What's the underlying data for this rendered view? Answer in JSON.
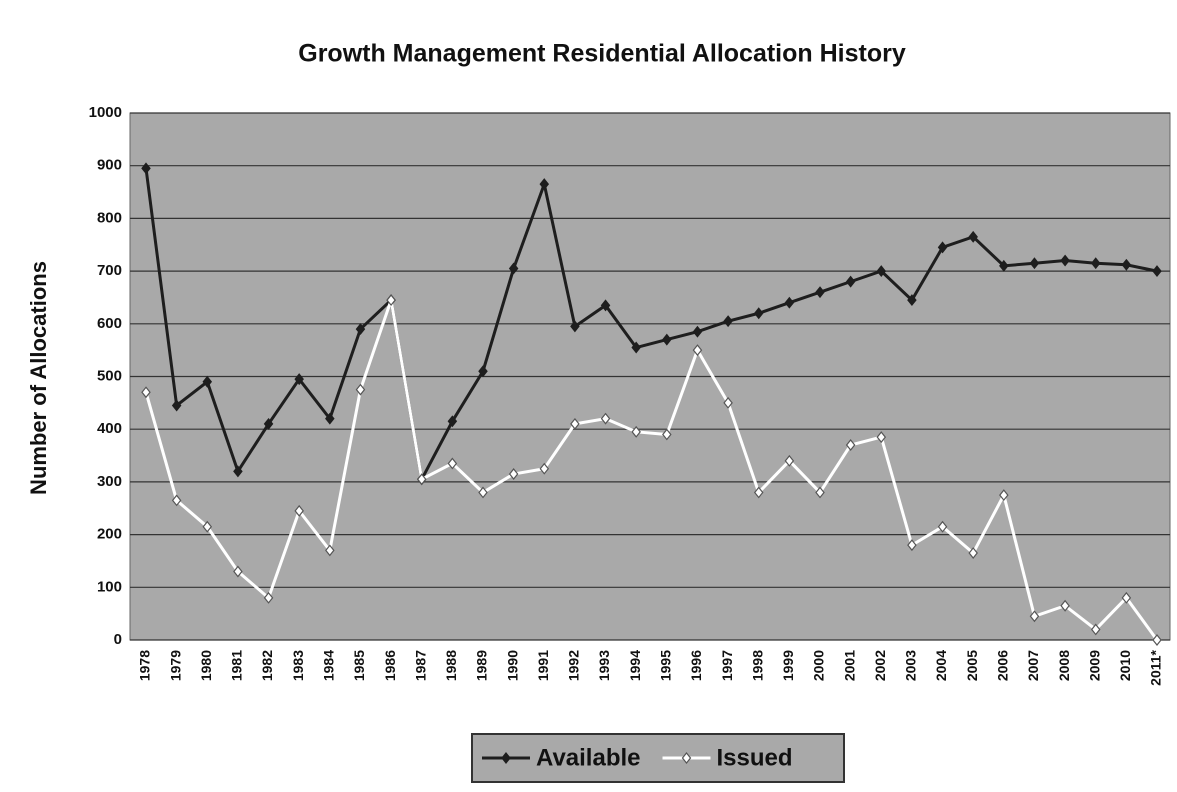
{
  "chart_data": {
    "type": "line",
    "title": "Growth Management Residential Allocation History",
    "y_label": "Number of Allocations",
    "categories": [
      "1978",
      "1979",
      "1980",
      "1981",
      "1982",
      "1983",
      "1984",
      "1985",
      "1986",
      "1987",
      "1988",
      "1989",
      "1990",
      "1991",
      "1992",
      "1993",
      "1994",
      "1995",
      "1996",
      "1997",
      "1998",
      "1999",
      "2000",
      "2001",
      "2002",
      "2003",
      "2004",
      "2005",
      "2006",
      "2007",
      "2008",
      "2009",
      "2010",
      "2011*"
    ],
    "series": [
      {
        "name": "Available",
        "color": "#1e1e1e",
        "marker": "diamond-filled",
        "values": [
          895,
          445,
          490,
          320,
          410,
          495,
          420,
          590,
          645,
          305,
          415,
          510,
          705,
          865,
          595,
          635,
          555,
          570,
          585,
          605,
          620,
          640,
          660,
          680,
          700,
          645,
          745,
          765,
          710,
          715,
          720,
          715,
          712,
          700
        ]
      },
      {
        "name": "Issued",
        "color": "#ffffff",
        "marker": "diamond-open",
        "values": [
          470,
          265,
          215,
          130,
          80,
          245,
          170,
          475,
          645,
          305,
          335,
          280,
          315,
          325,
          410,
          420,
          395,
          390,
          550,
          450,
          280,
          340,
          280,
          370,
          385,
          180,
          215,
          165,
          275,
          45,
          65,
          20,
          80,
          0
        ]
      }
    ],
    "ylim": [
      0,
      1000
    ],
    "yticks": [
      0,
      100,
      200,
      300,
      400,
      500,
      600,
      700,
      800,
      900,
      1000
    ],
    "grid": true,
    "legend": "bottom",
    "plot_background": "#a9a9a9"
  }
}
